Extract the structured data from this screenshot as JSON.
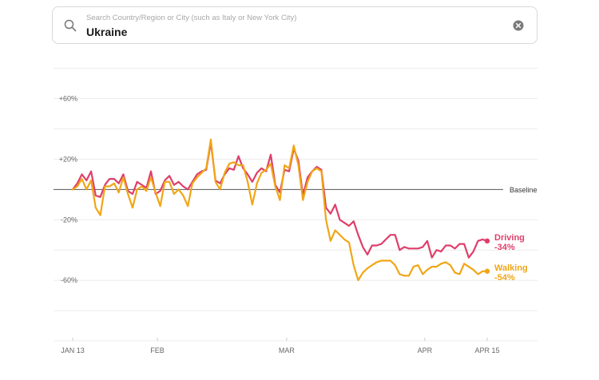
{
  "search": {
    "placeholder": "Search Country/Region or City (such as Italy or New York City)",
    "value": "Ukraine"
  },
  "chart_data": {
    "type": "line",
    "title": "",
    "xlabel": "",
    "ylabel": "",
    "ylim": [
      -100,
      80
    ],
    "yticks": [
      {
        "value": 60,
        "label": "+60%"
      },
      {
        "value": 20,
        "label": "+20%"
      },
      {
        "value": -20,
        "label": "-20%"
      },
      {
        "value": -60,
        "label": "-60%"
      }
    ],
    "gridlines": [
      80,
      60,
      40,
      20,
      -20,
      -40,
      -60,
      -80,
      -100
    ],
    "baseline": {
      "value": 0,
      "label": "Baseline"
    },
    "x_start": "2020-01-13",
    "x_end": "2020-04-15",
    "xticks": [
      {
        "date": "2020-01-13",
        "label": "JAN 13"
      },
      {
        "date": "2020-02-01",
        "label": "FEB"
      },
      {
        "date": "2020-03-01",
        "label": "MAR"
      },
      {
        "date": "2020-04-01",
        "label": "APR"
      },
      {
        "date": "2020-04-15",
        "label": "APR 15"
      }
    ],
    "colors": {
      "driving": "#de3f6a",
      "walking": "#f0a616"
    },
    "series": [
      {
        "name": "Driving",
        "key": "driving",
        "end_label": "-34%",
        "values": [
          0,
          4,
          10,
          6,
          12,
          -4,
          -5,
          3,
          7,
          7,
          4,
          10,
          -1,
          -3,
          5,
          3,
          1,
          12,
          -3,
          -1,
          6,
          9,
          3,
          5,
          2,
          0,
          5,
          10,
          12,
          13,
          31,
          6,
          4,
          10,
          14,
          13,
          22,
          14,
          10,
          5,
          11,
          14,
          12,
          23,
          3,
          -2,
          13,
          12,
          27,
          19,
          -4,
          8,
          12,
          15,
          13,
          -12,
          -16,
          -10,
          -20,
          -22,
          -24,
          -21,
          -30,
          -38,
          -43,
          -37,
          -37,
          -36,
          -33,
          -30,
          -30,
          -40,
          -38,
          -39,
          -39,
          -39,
          -38,
          -34,
          -45,
          -40,
          -41,
          -37,
          -37,
          -39,
          -36,
          -36,
          -45,
          -41,
          -34,
          -33,
          -34
        ]
      },
      {
        "name": "Walking",
        "key": "walking",
        "end_label": "-54%",
        "values": [
          0,
          2,
          7,
          0,
          6,
          -12,
          -17,
          2,
          2,
          4,
          -2,
          8,
          -3,
          -12,
          0,
          2,
          -1,
          8,
          -2,
          -11,
          5,
          5,
          -3,
          0,
          -4,
          -11,
          4,
          8,
          11,
          14,
          33,
          5,
          0,
          11,
          17,
          18,
          16,
          16,
          5,
          -10,
          4,
          11,
          13,
          17,
          2,
          -7,
          16,
          14,
          29,
          16,
          -7,
          5,
          12,
          14,
          12,
          -20,
          -34,
          -27,
          -30,
          -33,
          -35,
          -50,
          -60,
          -55,
          -52,
          -50,
          -48,
          -47,
          -47,
          -47,
          -50,
          -56,
          -57,
          -57,
          -51,
          -50,
          -56,
          -53,
          -51,
          -51,
          -49,
          -48,
          -50,
          -55,
          -56,
          -49,
          -51,
          -53,
          -56,
          -54,
          -54
        ]
      }
    ]
  }
}
